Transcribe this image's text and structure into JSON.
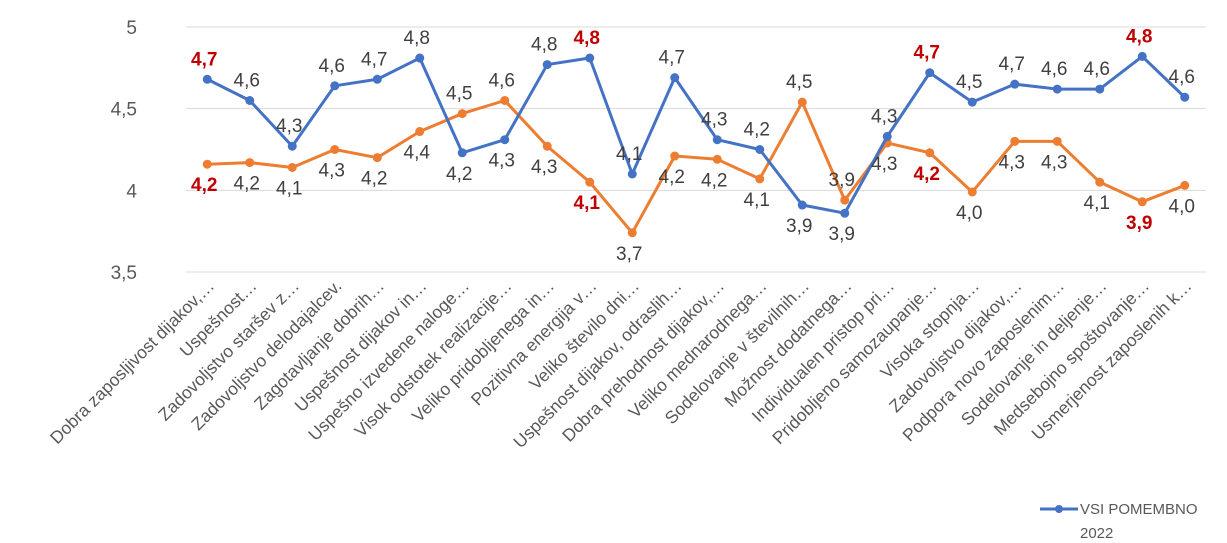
{
  "chart_data": {
    "type": "line",
    "ylim": [
      3.5,
      5
    ],
    "yticks": [
      "3,5",
      "4",
      "4,5",
      "5"
    ],
    "yticks_values": [
      3.5,
      4,
      4.5,
      5
    ],
    "grid": "horizontal",
    "legend_position": "bottom-right",
    "colors": {
      "series1": "#4472c4",
      "series2": "#ed7d31",
      "highlight": "#c00000",
      "grid": "#d9d9d9"
    },
    "categories": [
      "Dobra zaposljivost dijakov,…",
      "Uspešnost…",
      "Zadovoljstvo staršev z…",
      "Zadovoljstvo delodajalcev.",
      "Zagotavljanje dobrih…",
      "Uspešnost dijakov in…",
      "Uspešno izvedene naloge…",
      "Visok odstotek realizacije…",
      "Veliko pridobljenega in…",
      "Pozitivna energija v…",
      "Veliko število dni…",
      "Uspešnost dijakov, odraslih…",
      "Dobra prehodnost dijakov,…",
      "Veliko mednarodnega…",
      "Sodelovanje v številnih…",
      "Možnost dodatnega…",
      "Individualen pristop pri…",
      "Pridobljeno samozaupanje…",
      "Visoka stopnja…",
      "Zadovoljstvo dijakov,…",
      "Podpora novo zaposlenim…",
      "Sodelovanje in deljenje…",
      "Medsebojno spoštovanje…",
      "Usmerjenost zaposlenih k…"
    ],
    "series": [
      {
        "name": "VSI POMEMBNO",
        "values": [
          4.68,
          4.55,
          4.27,
          4.64,
          4.68,
          4.81,
          4.23,
          4.31,
          4.77,
          4.81,
          4.1,
          4.69,
          4.31,
          4.25,
          3.91,
          3.86,
          4.33,
          4.72,
          4.54,
          4.65,
          4.62,
          4.62,
          4.82,
          4.57
        ],
        "labels": [
          "4,7",
          "4,6",
          "4,3",
          "4,6",
          "4,7",
          "4,8",
          "4,2",
          "4,3",
          "4,8",
          "4,8",
          "4,1",
          "4,7",
          "4,3",
          "4,2",
          "3,9",
          "3,9",
          "4,3",
          "4,7",
          "4,5",
          "4,7",
          "4,6",
          "4,6",
          "4,8",
          "4,6"
        ],
        "highlight": [
          0,
          9,
          17,
          22
        ]
      },
      {
        "name": "2022",
        "values": [
          4.16,
          4.17,
          4.14,
          4.25,
          4.2,
          4.36,
          4.47,
          4.55,
          4.27,
          4.05,
          3.74,
          4.21,
          4.19,
          4.07,
          4.54,
          3.94,
          4.29,
          4.23,
          3.99,
          4.3,
          4.3,
          4.05,
          3.93,
          4.03
        ],
        "labels": [
          "4,2",
          "4,2",
          "4,1",
          "4,3",
          "4,2",
          "4,4",
          "4,5",
          "4,6",
          "4,3",
          "4,1",
          "3,7",
          "4,2",
          "4,2",
          "4,1",
          "4,5",
          "3,9",
          "4,3",
          "4,2",
          "4,0",
          "4,3",
          "4,3",
          "4,1",
          "3,9",
          "4,0"
        ],
        "highlight": [
          0,
          9,
          17,
          22
        ]
      }
    ]
  }
}
